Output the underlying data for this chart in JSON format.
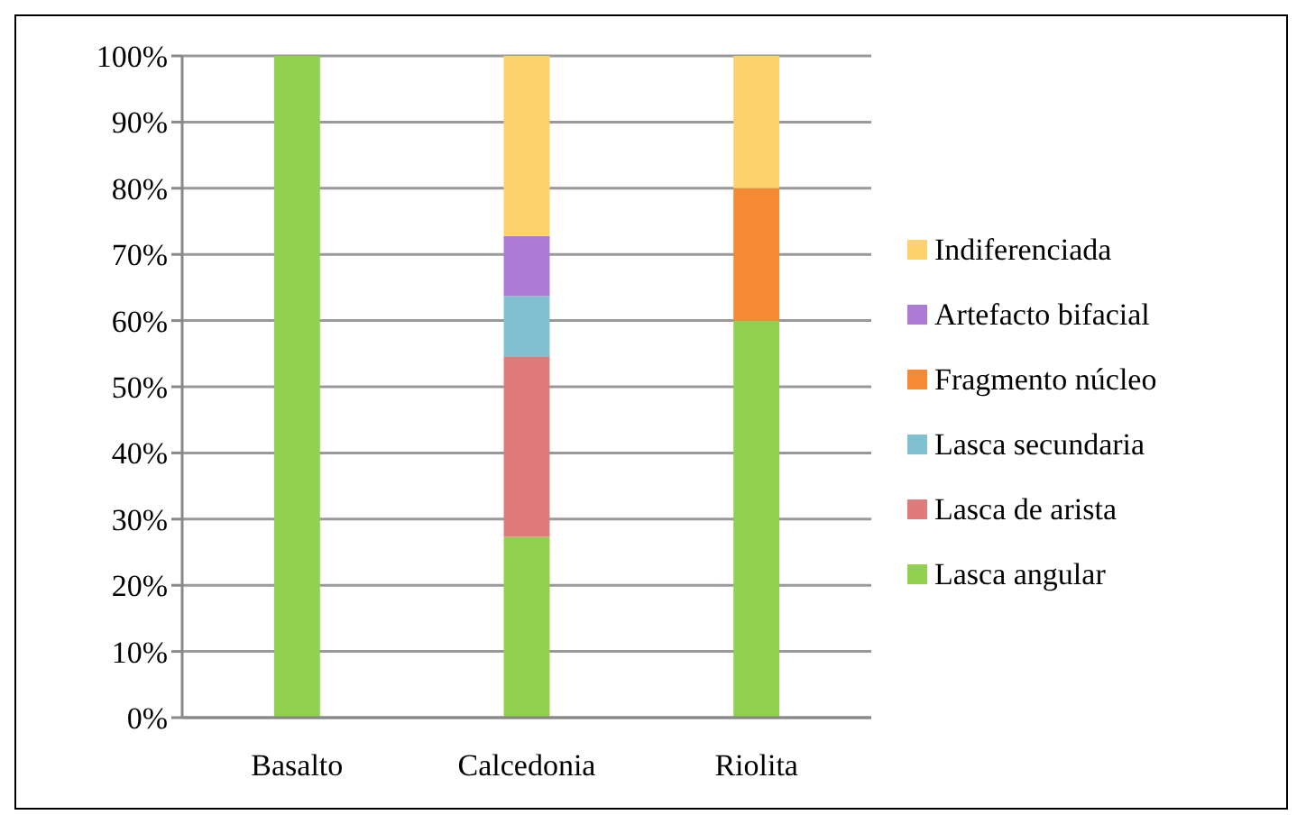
{
  "chart_data": {
    "type": "bar",
    "stacked": true,
    "categories": [
      "Basalto",
      "Calcedonia",
      "Riolita"
    ],
    "series": [
      {
        "name": "Lasca angular",
        "color": "#92d050",
        "values": [
          100,
          27.3,
          60
        ]
      },
      {
        "name": "Lasca de arista",
        "color": "#e07b7b",
        "values": [
          null,
          27.3,
          null
        ]
      },
      {
        "name": "Lasca secundaria",
        "color": "#7fc1d1",
        "values": [
          null,
          9.1,
          null
        ]
      },
      {
        "name": "Fragmento núcleo",
        "color": "#f68a33",
        "values": [
          null,
          null,
          20
        ]
      },
      {
        "name": "Artefacto bifacial",
        "color": "#ab7bd5",
        "values": [
          null,
          9.1,
          null
        ]
      },
      {
        "name": "Indiferenciada",
        "color": "#fdd26e",
        "values": [
          null,
          27.3,
          20
        ]
      }
    ],
    "ylim": [
      0,
      100
    ],
    "yticks": [
      {
        "value": 0,
        "label": "0%"
      },
      {
        "value": 10,
        "label": "10%"
      },
      {
        "value": 20,
        "label": "20%"
      },
      {
        "value": 30,
        "label": "30%"
      },
      {
        "value": 40,
        "label": "40%"
      },
      {
        "value": 50,
        "label": "50%"
      },
      {
        "value": 60,
        "label": "60%"
      },
      {
        "value": 70,
        "label": "70%"
      },
      {
        "value": 80,
        "label": "80%"
      },
      {
        "value": 90,
        "label": "90%"
      },
      {
        "value": 100,
        "label": "100%"
      }
    ],
    "grid": "y",
    "legend": "right"
  }
}
